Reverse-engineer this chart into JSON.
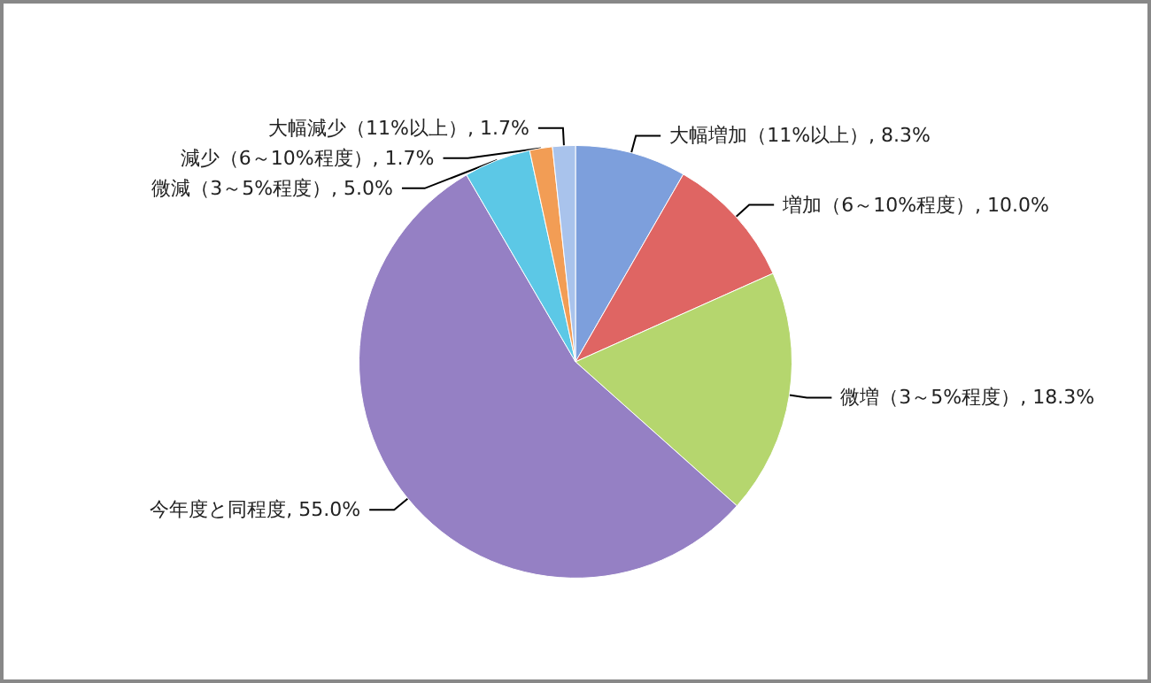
{
  "chart_data": {
    "type": "pie",
    "categories": [
      "大幅増加（11%以上）",
      "増加（6～10%程度）",
      "微増（3～5%程度）",
      "今年度と同程度",
      "微減（3～5%程度）",
      "減少（6～10%程度）",
      "大幅減少（11%以上）"
    ],
    "values": [
      8.3,
      10.0,
      18.3,
      55.0,
      5.0,
      1.7,
      1.7
    ],
    "colors": [
      "#7d9fdc",
      "#df6563",
      "#b5d66e",
      "#9580c4",
      "#5cc8e6",
      "#f29d55",
      "#a9c3ec"
    ],
    "value_labels": [
      "8.3%",
      "10.0%",
      "18.3%",
      "55.0%",
      "5.0%",
      "1.7%",
      "1.7%"
    ],
    "legend": false
  }
}
